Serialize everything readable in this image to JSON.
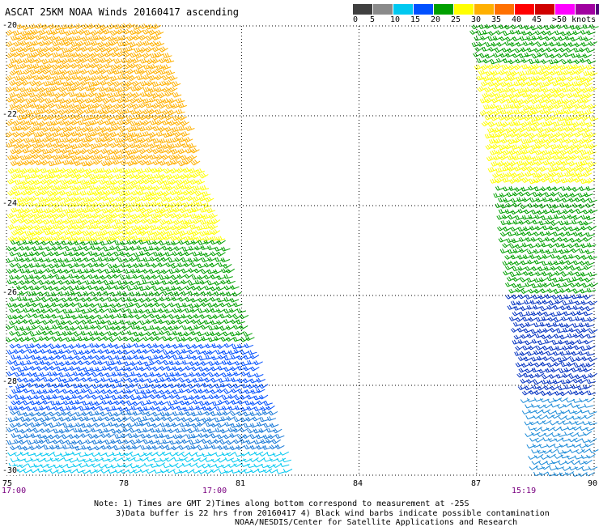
{
  "title": "ASCAT 25KM NOAA Winds 20160417 ascending",
  "legend": {
    "ticks": [
      "0",
      "5",
      "10",
      "15",
      "20",
      "25",
      "30",
      "35",
      "40",
      "45",
      ">50 knots"
    ],
    "colors": [
      "#404040",
      "#8a8a8a",
      "#00c8f0",
      "#0050ff",
      "#00a000",
      "#ffff00",
      "#ffb000",
      "#ff7000",
      "#ff0000",
      "#d00000",
      "#ff00ff",
      "#a000a0",
      "#50007a"
    ]
  },
  "map": {
    "lon_ticks": [
      "75",
      "78",
      "81",
      "84",
      "87",
      "90"
    ],
    "lat_ticks": [
      "-20",
      "-22",
      "-24",
      "-26",
      "-28",
      "-30"
    ],
    "grid": true
  },
  "times": {
    "left_edge": "17:00",
    "swath_left_bottom": "17:00",
    "swath_right_bottom": "15:19"
  },
  "notes": {
    "line1": "Note: 1) Times are GMT 2)Times along bottom correspond to measurement at -25S",
    "line2": "3)Data buffer is 22 hrs from 20160417 4) Black wind barbs indicate possible contamination",
    "line3": "NOAA/NESDIS/Center for Satellite Applications and Research"
  },
  "swaths": [
    {
      "name": "west-swath",
      "lon_top": [
        75.0,
        78.9
      ],
      "lon_bottom": [
        75.0,
        82.3
      ],
      "bands": [
        {
          "lat_from": -20.0,
          "lat_to": -23.2,
          "speed_knots": 28,
          "color": "#ffb000"
        },
        {
          "lat_from": -23.2,
          "lat_to": -24.8,
          "speed_knots": 23,
          "color": "#ffff00"
        },
        {
          "lat_from": -24.8,
          "lat_to": -27.1,
          "speed_knots": 17,
          "color": "#00a000"
        },
        {
          "lat_from": -27.1,
          "lat_to": -28.6,
          "speed_knots": 13,
          "color": "#0050ff"
        },
        {
          "lat_from": -28.6,
          "lat_to": -29.5,
          "speed_knots": 10,
          "color": "#1a7ad8"
        },
        {
          "lat_from": -29.5,
          "lat_to": -30.0,
          "speed_knots": 6,
          "color": "#00c8f0"
        }
      ]
    },
    {
      "name": "east-swath",
      "lon_top": [
        86.8,
        90.0
      ],
      "lon_bottom": [
        88.3,
        90.0
      ],
      "bands": [
        {
          "lat_from": -20.0,
          "lat_to": -20.9,
          "speed_knots": 17,
          "color": "#00a000"
        },
        {
          "lat_from": -20.9,
          "lat_to": -23.6,
          "speed_knots": 23,
          "color": "#ffff00"
        },
        {
          "lat_from": -23.6,
          "lat_to": -26.0,
          "speed_knots": 17,
          "color": "#00a000"
        },
        {
          "lat_from": -26.0,
          "lat_to": -28.3,
          "speed_knots": 12,
          "color": "#0030c0"
        },
        {
          "lat_from": -28.3,
          "lat_to": -30.0,
          "speed_knots": 8,
          "color": "#1a8ad8"
        }
      ]
    }
  ]
}
